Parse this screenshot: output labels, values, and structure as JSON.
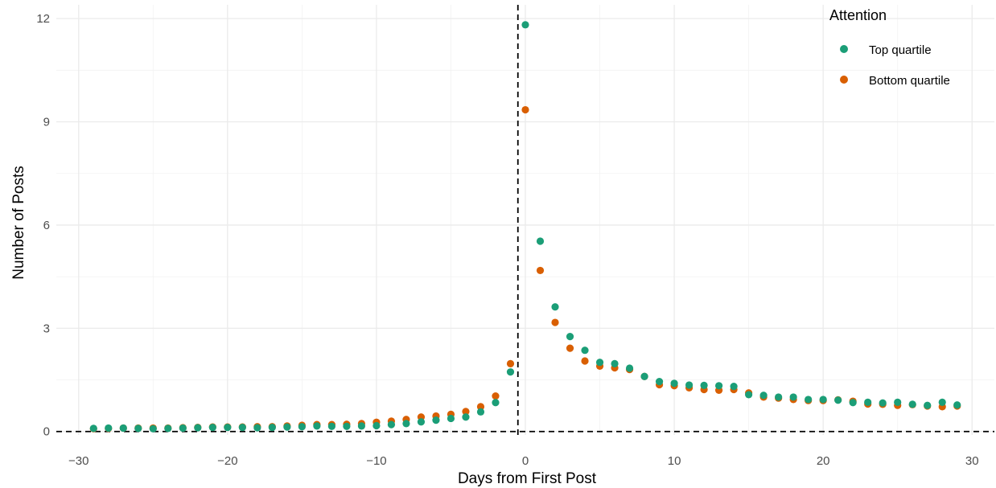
{
  "chart_data": {
    "type": "scatter",
    "xlabel": "Days from First Post",
    "ylabel": "Number of Posts",
    "xlim": [
      -31.5,
      31.5
    ],
    "ylim": [
      -0.1,
      12.4
    ],
    "x_ticks": [
      -30,
      -20,
      -10,
      0,
      10,
      20,
      30
    ],
    "x_tick_labels": [
      "−30",
      "−20",
      "−10",
      "0",
      "10",
      "20",
      "30"
    ],
    "y_ticks": [
      0,
      3,
      6,
      9,
      12
    ],
    "y_tick_labels": [
      "0",
      "3",
      "6",
      "9",
      "12"
    ],
    "grid": true,
    "reference_lines": {
      "vertical_x": -0.5,
      "horizontal_y": 0,
      "style": "dashed"
    },
    "legend": {
      "title": "Attention",
      "position": "top-right"
    },
    "x": [
      -29,
      -28,
      -27,
      -26,
      -25,
      -24,
      -23,
      -22,
      -21,
      -20,
      -19,
      -18,
      -17,
      -16,
      -15,
      -14,
      -13,
      -12,
      -11,
      -10,
      -9,
      -8,
      -7,
      -6,
      -5,
      -4,
      -3,
      -2,
      -1,
      0,
      1,
      2,
      3,
      4,
      5,
      6,
      7,
      8,
      9,
      10,
      11,
      12,
      13,
      14,
      15,
      16,
      17,
      18,
      19,
      20,
      21,
      22,
      23,
      24,
      25,
      26,
      27,
      28,
      29
    ],
    "series": [
      {
        "name": "Bottom quartile",
        "color": "#D95F02",
        "values": [
          0.08,
          0.09,
          0.1,
          0.1,
          0.1,
          0.1,
          0.11,
          0.12,
          0.13,
          0.13,
          0.13,
          0.14,
          0.14,
          0.16,
          0.18,
          0.2,
          0.2,
          0.21,
          0.23,
          0.27,
          0.3,
          0.35,
          0.42,
          0.45,
          0.5,
          0.58,
          0.72,
          1.03,
          1.97,
          9.35,
          4.68,
          3.17,
          2.42,
          2.05,
          1.9,
          1.85,
          1.8,
          1.6,
          1.36,
          1.33,
          1.27,
          1.22,
          1.2,
          1.22,
          1.12,
          1.0,
          0.97,
          0.93,
          0.9,
          0.9,
          0.92,
          0.88,
          0.8,
          0.79,
          0.76,
          0.78,
          0.74,
          0.72,
          0.74
        ]
      },
      {
        "name": "Top quartile",
        "color": "#1B9E77",
        "values": [
          0.09,
          0.1,
          0.1,
          0.09,
          0.08,
          0.09,
          0.1,
          0.11,
          0.12,
          0.12,
          0.12,
          0.11,
          0.12,
          0.13,
          0.14,
          0.16,
          0.15,
          0.15,
          0.16,
          0.17,
          0.2,
          0.23,
          0.28,
          0.33,
          0.38,
          0.42,
          0.57,
          0.84,
          1.73,
          11.82,
          5.53,
          3.62,
          2.76,
          2.36,
          2.01,
          1.97,
          1.84,
          1.6,
          1.45,
          1.4,
          1.35,
          1.34,
          1.33,
          1.31,
          1.07,
          1.05,
          1.0,
          1.0,
          0.93,
          0.93,
          0.91,
          0.84,
          0.85,
          0.83,
          0.85,
          0.79,
          0.76,
          0.85,
          0.77
        ]
      }
    ]
  }
}
